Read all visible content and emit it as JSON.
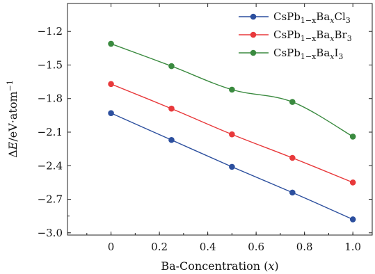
{
  "chart_data": {
    "type": "line",
    "xlabel_parts": [
      "Ba-Concentration (",
      "x",
      ")"
    ],
    "ylabel_parts": [
      "Δ",
      "E",
      "/eV·atom",
      "−1"
    ],
    "x_ticks": [
      "0",
      "0.2",
      "0.4",
      "0.6",
      "0.8",
      "1.0"
    ],
    "y_ticks": [
      "−1.2",
      "−1.5",
      "−1.8",
      "−2.1",
      "−2.4",
      "−2.7",
      "−3.0"
    ],
    "xlim": [
      -0.18,
      1.08
    ],
    "ylim": [
      -3.02,
      -0.95
    ],
    "grid": false,
    "legend_position": "top-right",
    "x": [
      0,
      0.25,
      0.5,
      0.75,
      1.0
    ],
    "series": [
      {
        "name_parts": {
          "base": "CsPb",
          "sub1": "1−x",
          "mid": "Ba",
          "sub2": "x",
          "end": "Cl",
          "sub3": "3"
        },
        "color": "#2c4f9e",
        "values": [
          -1.93,
          -2.17,
          -2.41,
          -2.64,
          -2.88
        ]
      },
      {
        "name_parts": {
          "base": "CsPb",
          "sub1": "1−x",
          "mid": "Ba",
          "sub2": "x",
          "end": "Br",
          "sub3": "3"
        },
        "color": "#e8393b",
        "values": [
          -1.67,
          -1.89,
          -2.12,
          -2.33,
          -2.55
        ]
      },
      {
        "name_parts": {
          "base": "CsPb",
          "sub1": "1−x",
          "mid": "Ba",
          "sub2": "x",
          "end": "I",
          "sub3": "3"
        },
        "color": "#3a8a3f",
        "values": [
          -1.31,
          -1.51,
          -1.72,
          -1.83,
          -2.14
        ]
      }
    ]
  }
}
